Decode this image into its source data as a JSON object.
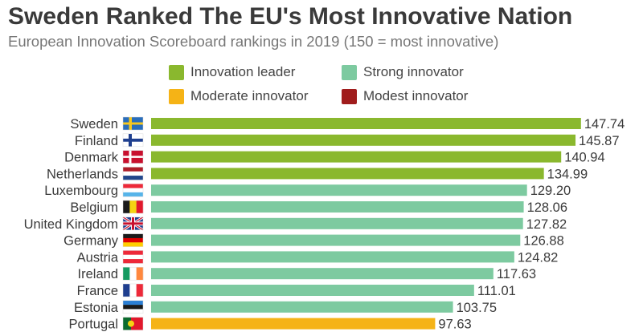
{
  "title": "Sweden Ranked The EU's Most Innovative Nation",
  "subtitle": "European Innovation Scoreboard rankings in 2019 (150 = most innovative)",
  "legend": [
    {
      "label": "Innovation leader",
      "color": "#8ab82e"
    },
    {
      "label": "Strong innovator",
      "color": "#7dcaa0"
    },
    {
      "label": "Moderate innovator",
      "color": "#f5b316"
    },
    {
      "label": "Modest innovator",
      "color": "#a01c1c"
    }
  ],
  "chart_data": {
    "type": "bar",
    "orientation": "horizontal",
    "title": "Sweden Ranked The EU's Most Innovative Nation",
    "subtitle": "European Innovation Scoreboard rankings in 2019 (150 = most innovative)",
    "xlim": [
      0,
      150
    ],
    "categories": [
      "Sweden",
      "Finland",
      "Denmark",
      "Netherlands",
      "Luxembourg",
      "Belgium",
      "United Kingdom",
      "Germany",
      "Austria",
      "Ireland",
      "France",
      "Estonia",
      "Portugal"
    ],
    "values": [
      147.74,
      145.87,
      140.94,
      134.99,
      129.2,
      128.06,
      127.82,
      126.88,
      124.82,
      117.63,
      111.01,
      103.75,
      97.63
    ],
    "value_labels": [
      "147.74",
      "145.87",
      "140.94",
      "134.99",
      "129.20",
      "128.06",
      "127.82",
      "126.88",
      "124.82",
      "117.63",
      "111.01",
      "103.75",
      "97.63"
    ],
    "groups": [
      "Innovation leader",
      "Innovation leader",
      "Innovation leader",
      "Innovation leader",
      "Strong innovator",
      "Strong innovator",
      "Strong innovator",
      "Strong innovator",
      "Strong innovator",
      "Strong innovator",
      "Strong innovator",
      "Strong innovator",
      "Moderate innovator"
    ],
    "flag_icons": [
      "sweden-flag-icon",
      "finland-flag-icon",
      "denmark-flag-icon",
      "netherlands-flag-icon",
      "luxembourg-flag-icon",
      "belgium-flag-icon",
      "uk-flag-icon",
      "germany-flag-icon",
      "austria-flag-icon",
      "ireland-flag-icon",
      "france-flag-icon",
      "estonia-flag-icon",
      "portugal-flag-icon"
    ]
  }
}
